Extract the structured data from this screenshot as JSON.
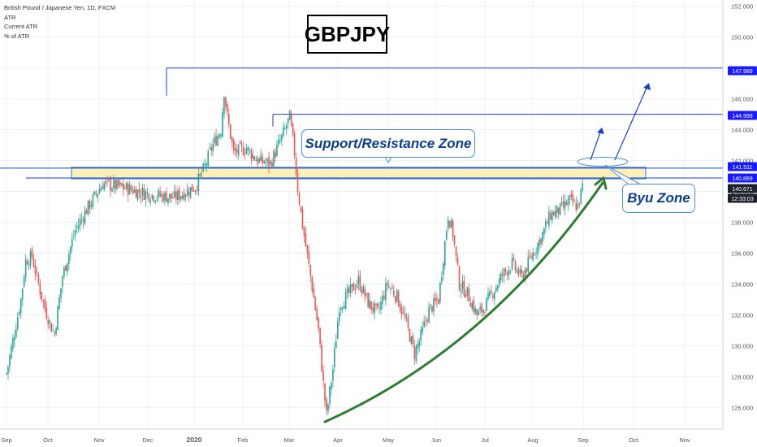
{
  "header": {
    "symbol_line": "British Pound / Japanese Yen, 1D, FXCM",
    "indicators": [
      "ATR",
      "Current ATR",
      "% of ATR"
    ]
  },
  "title": "GBPJPY",
  "annotations": {
    "support_resistance": "Support/Resistance Zone",
    "buy_zone": "Byu Zone"
  },
  "chart_data": {
    "type": "candlestick",
    "x_labels": [
      "Sep",
      "Oct",
      "Nov",
      "Dec",
      "2020",
      "Feb",
      "Mar",
      "Apr",
      "May",
      "Jun",
      "Jul",
      "Aug",
      "Sep",
      "Oct",
      "Nov"
    ],
    "y_ticks": [
      126,
      128,
      130,
      132,
      134,
      136,
      138,
      140,
      142,
      144,
      146,
      148,
      150,
      152
    ],
    "ylim": [
      124.6,
      152.4
    ],
    "price_tags": [
      {
        "value": "147.989",
        "style": "blue"
      },
      {
        "value": "144.999",
        "style": "blue"
      },
      {
        "value": "141.511",
        "style": "blue"
      },
      {
        "value": "140.869",
        "style": "blue"
      },
      {
        "value": "140.671",
        "style": "dark"
      },
      {
        "value": "12:33:03",
        "style": "dark"
      }
    ],
    "horizontal_levels": [
      147.989,
      144.999,
      141.511,
      140.869
    ],
    "zone": [
      140.869,
      141.511
    ],
    "up_color": "#26a69a",
    "down_color": "#ef5350",
    "line_color": "#1a3fcf",
    "arrow_color": "#2e7d32",
    "anchors": [
      [
        0,
        128.2
      ],
      [
        9,
        133.0
      ],
      [
        12,
        135.5
      ],
      [
        16,
        135.8
      ],
      [
        19,
        134.4
      ],
      [
        24,
        132.4
      ],
      [
        28,
        131.2
      ],
      [
        30,
        130.8
      ],
      [
        35,
        134.5
      ],
      [
        43,
        137.5
      ],
      [
        50,
        138.8
      ],
      [
        60,
        140.5
      ],
      [
        75,
        140.2
      ],
      [
        90,
        139.8
      ],
      [
        105,
        139.6
      ],
      [
        118,
        140.3
      ],
      [
        124,
        141.6
      ],
      [
        128,
        142.8
      ],
      [
        134,
        144.0
      ],
      [
        136,
        146.5
      ],
      [
        138,
        144.8
      ],
      [
        142,
        142.5
      ],
      [
        150,
        142.8
      ],
      [
        157,
        142.0
      ],
      [
        165,
        141.8
      ],
      [
        172,
        143.5
      ],
      [
        177,
        144.8
      ],
      [
        180,
        142.5
      ],
      [
        182,
        140.2
      ],
      [
        185,
        137.8
      ],
      [
        190,
        134.5
      ],
      [
        195,
        131.0
      ],
      [
        198,
        127.5
      ],
      [
        200,
        125.5
      ],
      [
        204,
        128.5
      ],
      [
        208,
        132.6
      ],
      [
        214,
        133.4
      ],
      [
        220,
        134.2
      ],
      [
        226,
        132.8
      ],
      [
        232,
        132.1
      ],
      [
        238,
        134.0
      ],
      [
        244,
        133.2
      ],
      [
        250,
        131.4
      ],
      [
        255,
        129.5
      ],
      [
        258,
        130.3
      ],
      [
        264,
        132.3
      ],
      [
        270,
        133.0
      ],
      [
        276,
        138.5
      ],
      [
        279,
        137.3
      ],
      [
        283,
        134.0
      ],
      [
        288,
        133.4
      ],
      [
        294,
        132.0
      ],
      [
        298,
        132.4
      ],
      [
        304,
        133.5
      ],
      [
        310,
        134.6
      ],
      [
        316,
        135.3
      ],
      [
        322,
        134.4
      ],
      [
        328,
        135.8
      ],
      [
        334,
        137.0
      ],
      [
        340,
        138.5
      ],
      [
        346,
        138.8
      ],
      [
        352,
        139.4
      ],
      [
        357,
        139.0
      ],
      [
        360,
        140.3
      ]
    ]
  }
}
